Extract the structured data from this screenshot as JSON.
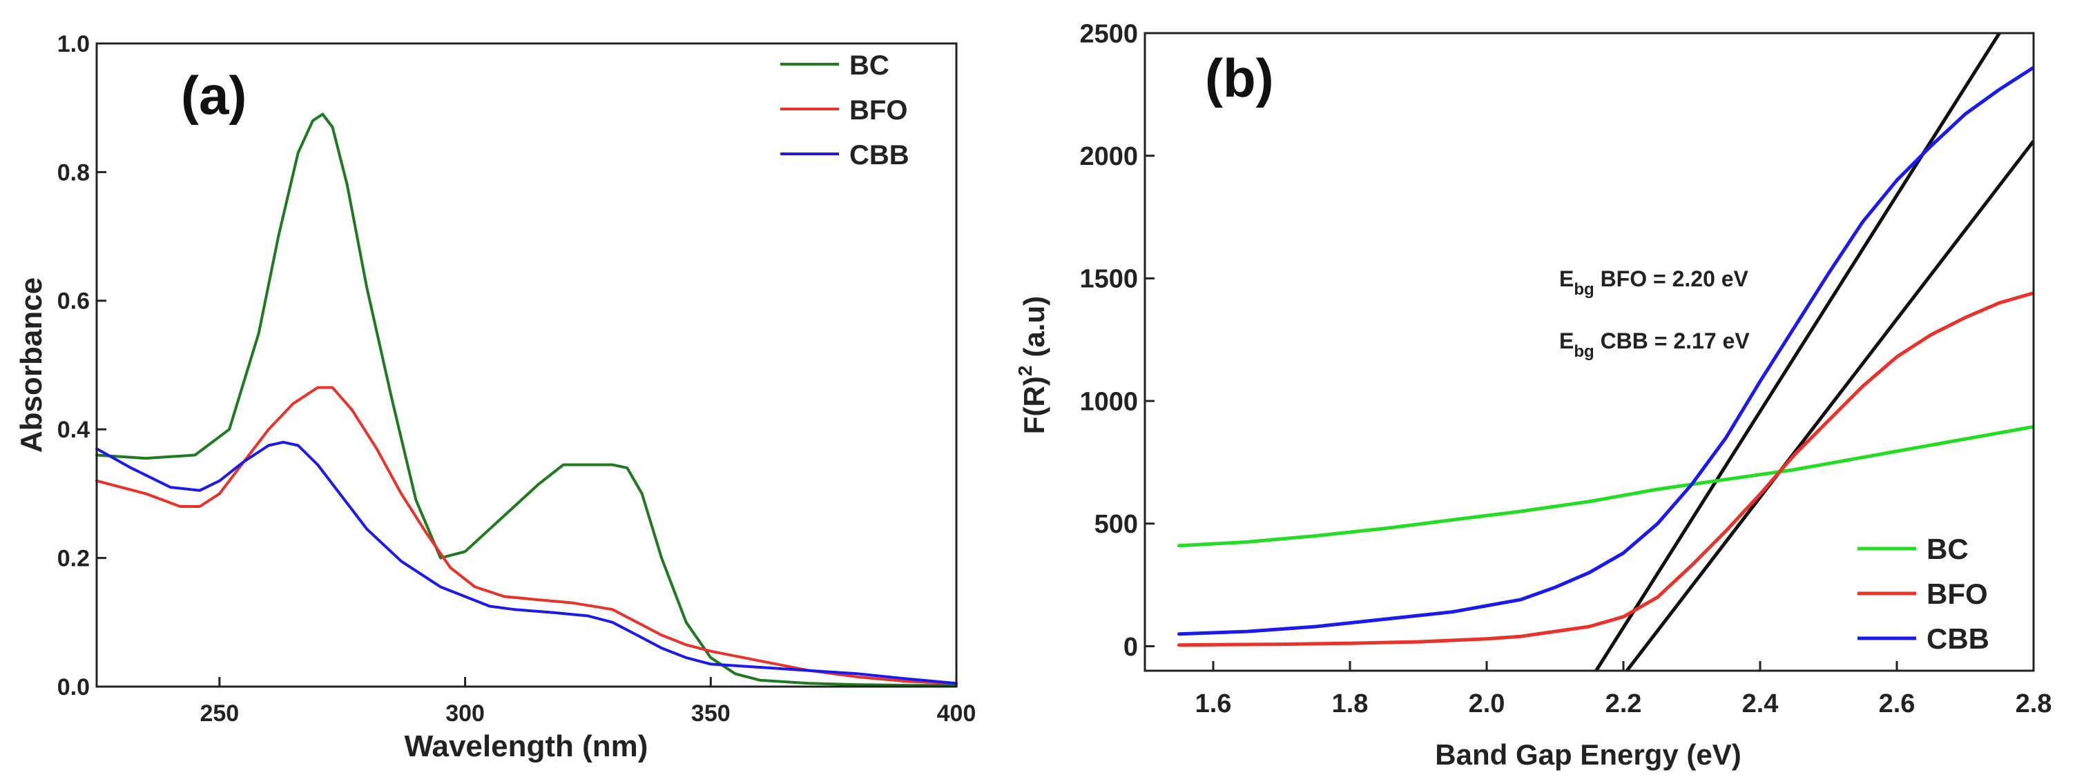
{
  "chart_data": [
    {
      "type": "line",
      "panel_label": "(a)",
      "xlabel": "Wavelength (nm)",
      "ylabel": "Absorbance",
      "xlim": [
        225,
        400
      ],
      "ylim": [
        0.0,
        1.0
      ],
      "xticks": [
        250,
        300,
        350,
        400
      ],
      "yticks": [
        0.0,
        0.2,
        0.4,
        0.6,
        0.8,
        1.0
      ],
      "ytick_labels": [
        "0.0",
        "0.2",
        "0.4",
        "0.6",
        "0.8",
        "1.0"
      ],
      "legend_position": "top-right",
      "series": [
        {
          "name": "BC",
          "color": "#1e7a1e",
          "x": [
            225,
            235,
            245,
            252,
            258,
            262,
            266,
            269,
            271,
            273,
            276,
            280,
            285,
            290,
            295,
            300,
            305,
            310,
            315,
            320,
            325,
            330,
            333,
            336,
            340,
            345,
            350,
            355,
            360,
            370,
            380,
            390,
            400
          ],
          "y": [
            0.36,
            0.355,
            0.36,
            0.4,
            0.55,
            0.7,
            0.83,
            0.88,
            0.89,
            0.87,
            0.78,
            0.62,
            0.45,
            0.29,
            0.2,
            0.21,
            0.245,
            0.28,
            0.315,
            0.345,
            0.345,
            0.345,
            0.34,
            0.3,
            0.2,
            0.1,
            0.045,
            0.02,
            0.01,
            0.005,
            0.003,
            0.002,
            0.002
          ]
        },
        {
          "name": "BFO",
          "color": "#e8322a",
          "x": [
            225,
            235,
            242,
            246,
            250,
            255,
            260,
            265,
            270,
            273,
            277,
            282,
            287,
            292,
            297,
            302,
            308,
            315,
            322,
            330,
            335,
            340,
            345,
            350,
            360,
            370,
            380,
            390,
            400
          ],
          "y": [
            0.32,
            0.3,
            0.28,
            0.28,
            0.3,
            0.35,
            0.4,
            0.44,
            0.465,
            0.465,
            0.43,
            0.37,
            0.3,
            0.24,
            0.185,
            0.155,
            0.14,
            0.135,
            0.13,
            0.12,
            0.1,
            0.08,
            0.065,
            0.055,
            0.04,
            0.025,
            0.015,
            0.008,
            0.005
          ]
        },
        {
          "name": "CBB",
          "color": "#1a1aee",
          "x": [
            225,
            232,
            240,
            246,
            250,
            255,
            260,
            263,
            266,
            270,
            275,
            280,
            287,
            295,
            300,
            305,
            310,
            318,
            325,
            330,
            335,
            340,
            345,
            350,
            360,
            370,
            380,
            390,
            400
          ],
          "y": [
            0.37,
            0.34,
            0.31,
            0.305,
            0.32,
            0.35,
            0.375,
            0.38,
            0.375,
            0.345,
            0.295,
            0.245,
            0.195,
            0.155,
            0.14,
            0.125,
            0.12,
            0.115,
            0.11,
            0.1,
            0.08,
            0.06,
            0.045,
            0.035,
            0.03,
            0.025,
            0.02,
            0.012,
            0.005
          ]
        }
      ]
    },
    {
      "type": "line",
      "panel_label": "(b)",
      "xlabel": "Band Gap Energy (eV)",
      "ylabel": "F(R)² (a.u)",
      "ylabel_main": "F(R)",
      "ylabel_sup": "2",
      "ylabel_unit": "(a.u)",
      "xlim": [
        1.5,
        2.8
      ],
      "ylim": [
        -100,
        2500
      ],
      "xticks": [
        1.6,
        1.8,
        2.0,
        2.2,
        2.4,
        2.6,
        2.8
      ],
      "xtick_labels": [
        "1.6",
        "1.8",
        "2.0",
        "2.2",
        "2.4",
        "2.6",
        "2.8"
      ],
      "yticks": [
        0,
        500,
        1000,
        1500,
        2000,
        2500
      ],
      "legend_position": "bottom-right",
      "annotations": [
        {
          "prefix": "E",
          "sub": "bg",
          "text": " BFO = 2.20 eV"
        },
        {
          "prefix": "E",
          "sub": "bg",
          "text": " CBB = 2.17 eV"
        }
      ],
      "tangent_lines": [
        {
          "name": "CBB tangent",
          "color": "#111111",
          "x": [
            2.16,
            2.75
          ],
          "y": [
            -100,
            2500
          ]
        },
        {
          "name": "BFO tangent",
          "color": "#111111",
          "x": [
            2.205,
            2.8
          ],
          "y": [
            -100,
            2060
          ]
        }
      ],
      "series": [
        {
          "name": "BC",
          "color": "#22dd22",
          "x": [
            1.55,
            1.65,
            1.75,
            1.85,
            1.95,
            2.05,
            2.15,
            2.25,
            2.35,
            2.45,
            2.55,
            2.65,
            2.75,
            2.8
          ],
          "y": [
            410,
            425,
            450,
            480,
            515,
            550,
            590,
            640,
            680,
            720,
            770,
            820,
            870,
            895
          ]
        },
        {
          "name": "BFO",
          "color": "#e8322a",
          "x": [
            1.55,
            1.7,
            1.8,
            1.9,
            2.0,
            2.05,
            2.1,
            2.15,
            2.2,
            2.25,
            2.3,
            2.35,
            2.4,
            2.45,
            2.5,
            2.55,
            2.6,
            2.65,
            2.7,
            2.75,
            2.8
          ],
          "y": [
            5,
            8,
            12,
            18,
            30,
            40,
            60,
            80,
            120,
            200,
            330,
            470,
            620,
            780,
            920,
            1060,
            1180,
            1270,
            1340,
            1400,
            1440
          ]
        },
        {
          "name": "CBB",
          "color": "#1a1aee",
          "x": [
            1.55,
            1.65,
            1.75,
            1.85,
            1.95,
            2.05,
            2.1,
            2.15,
            2.2,
            2.25,
            2.3,
            2.35,
            2.4,
            2.45,
            2.5,
            2.55,
            2.6,
            2.65,
            2.7,
            2.75,
            2.8
          ],
          "y": [
            50,
            60,
            80,
            110,
            140,
            190,
            240,
            300,
            380,
            500,
            660,
            850,
            1080,
            1300,
            1520,
            1730,
            1900,
            2040,
            2170,
            2270,
            2360
          ]
        }
      ]
    }
  ]
}
